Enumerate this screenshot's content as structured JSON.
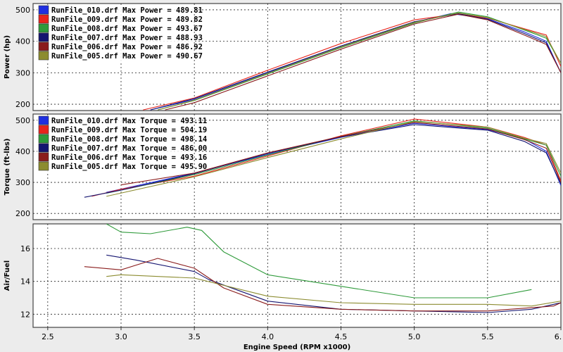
{
  "chart_data": [
    {
      "type": "line",
      "ylabel": "Power (hp)",
      "ylim": [
        180,
        520
      ],
      "yticks": [
        200,
        300,
        400,
        500
      ],
      "xlim": [
        2.4,
        6.0
      ],
      "grid": true,
      "legend_position": "top-left",
      "legend": [
        {
          "text": "RunFile_010.drf Max Power = 489.81",
          "color": "#1f2fe0"
        },
        {
          "text": "RunFile_009.drf Max Power = 489.82",
          "color": "#e8241c"
        },
        {
          "text": "RunFile_008.drf Max Power = 493.67",
          "color": "#2e9a3a"
        },
        {
          "text": "RunFile_007.drf Max Power = 488.93",
          "color": "#141470"
        },
        {
          "text": "RunFile_006.drf Max Power = 486.92",
          "color": "#8a1c1c"
        },
        {
          "text": "RunFile_005.drf Max Power = 490.67",
          "color": "#8c8c30"
        }
      ],
      "series": [
        {
          "name": "RunFile_010.drf",
          "color": "#1f2fe0",
          "x": [
            3.2,
            3.5,
            4.0,
            4.5,
            5.0,
            5.25,
            5.5,
            5.75,
            5.9,
            6.0
          ],
          "y": [
            182,
            215,
            300,
            385,
            460,
            488,
            472,
            430,
            400,
            300
          ]
        },
        {
          "name": "RunFile_009.drf",
          "color": "#e8241c",
          "x": [
            3.15,
            3.5,
            4.0,
            4.5,
            5.0,
            5.3,
            5.5,
            5.75,
            5.9,
            6.0
          ],
          "y": [
            182,
            220,
            308,
            393,
            468,
            487,
            474,
            440,
            420,
            320
          ]
        },
        {
          "name": "RunFile_008.drf",
          "color": "#2e9a3a",
          "x": [
            3.25,
            3.5,
            4.0,
            4.5,
            5.0,
            5.3,
            5.5,
            5.75,
            5.9,
            6.0
          ],
          "y": [
            182,
            212,
            296,
            380,
            458,
            493,
            478,
            436,
            410,
            330
          ]
        },
        {
          "name": "RunFile_007.drf",
          "color": "#141470",
          "x": [
            3.2,
            3.5,
            4.0,
            4.5,
            5.0,
            5.3,
            5.5,
            5.75,
            5.9,
            6.0
          ],
          "y": [
            182,
            218,
            302,
            385,
            462,
            488,
            470,
            425,
            395,
            300
          ]
        },
        {
          "name": "RunFile_006.drf",
          "color": "#8a1c1c",
          "x": [
            3.3,
            3.5,
            4.0,
            4.5,
            5.0,
            5.3,
            5.5,
            5.75,
            5.9,
            6.0
          ],
          "y": [
            182,
            205,
            290,
            375,
            455,
            486,
            468,
            420,
            390,
            300
          ]
        },
        {
          "name": "RunFile_005.drf",
          "color": "#8c8c30",
          "x": [
            3.25,
            3.5,
            4.0,
            4.5,
            5.0,
            5.3,
            5.5,
            5.75,
            5.9,
            6.0
          ],
          "y": [
            182,
            213,
            298,
            382,
            460,
            490,
            475,
            438,
            415,
            330
          ]
        }
      ]
    },
    {
      "type": "line",
      "ylabel": "Torque (ft-lbs)",
      "ylim": [
        180,
        520
      ],
      "yticks": [
        200,
        300,
        400,
        500
      ],
      "xlim": [
        2.4,
        6.0
      ],
      "grid": true,
      "legend_position": "top-left",
      "legend": [
        {
          "text": "RunFile_010.drf Max Torque = 493.11",
          "color": "#1f2fe0"
        },
        {
          "text": "RunFile_009.drf Max Torque = 504.19",
          "color": "#e8241c"
        },
        {
          "text": "RunFile_008.drf Max Torque = 498.14",
          "color": "#2e9a3a"
        },
        {
          "text": "RunFile_007.drf Max Torque = 486.00",
          "color": "#141470"
        },
        {
          "text": "RunFile_006.drf Max Torque = 493.16",
          "color": "#8a1c1c"
        },
        {
          "text": "RunFile_005.drf Max Torque = 495.90",
          "color": "#8c8c30"
        }
      ],
      "series": [
        {
          "name": "RunFile_010.drf",
          "color": "#1f2fe0",
          "x": [
            2.9,
            3.5,
            4.0,
            4.5,
            5.0,
            5.5,
            5.75,
            5.9,
            6.0
          ],
          "y": [
            268,
            330,
            390,
            445,
            490,
            470,
            440,
            400,
            290
          ]
        },
        {
          "name": "RunFile_009.drf",
          "color": "#e8241c",
          "x": [
            2.8,
            3.0,
            3.5,
            4.0,
            4.5,
            5.0,
            5.5,
            5.75,
            5.9,
            6.0
          ],
          "y": [
            255,
            278,
            320,
            385,
            450,
            504,
            478,
            445,
            420,
            305
          ]
        },
        {
          "name": "RunFile_008.drf",
          "color": "#2e9a3a",
          "x": [
            2.9,
            3.5,
            4.0,
            4.5,
            5.0,
            5.5,
            5.75,
            5.9,
            6.0
          ],
          "y": [
            265,
            325,
            388,
            448,
            498,
            475,
            440,
            420,
            320
          ]
        },
        {
          "name": "RunFile_007.drf",
          "color": "#141470",
          "x": [
            2.75,
            3.0,
            3.5,
            4.0,
            4.5,
            5.0,
            5.5,
            5.75,
            5.9,
            6.0
          ],
          "y": [
            252,
            275,
            328,
            393,
            446,
            486,
            468,
            432,
            395,
            295
          ]
        },
        {
          "name": "RunFile_006.drf",
          "color": "#8a1c1c",
          "x": [
            3.0,
            3.5,
            4.0,
            4.5,
            5.0,
            5.5,
            5.75,
            5.9,
            6.0
          ],
          "y": [
            292,
            330,
            395,
            448,
            493,
            472,
            438,
            410,
            300
          ]
        },
        {
          "name": "RunFile_005.drf",
          "color": "#8c8c30",
          "x": [
            2.9,
            3.5,
            4.0,
            4.5,
            5.0,
            5.5,
            5.75,
            5.9,
            6.0
          ],
          "y": [
            255,
            318,
            380,
            440,
            496,
            478,
            442,
            425,
            330
          ]
        }
      ]
    },
    {
      "type": "line",
      "ylabel": "Air/Fuel",
      "ylim": [
        11.2,
        17.5
      ],
      "yticks": [
        12,
        14,
        16
      ],
      "xlim": [
        2.4,
        6.0
      ],
      "xticks": [
        2.5,
        3.0,
        3.5,
        4.0,
        4.5,
        5.0,
        5.5,
        6.0
      ],
      "xticklabels": [
        "2.5",
        "3.0",
        "3.5",
        "4.0",
        "4.5",
        "5.0",
        "5.5",
        "6."
      ],
      "xlabel": "Engine Speed (RPM x1000)",
      "grid": true,
      "series": [
        {
          "name": "RunFile_008.drf",
          "color": "#2e9a3a",
          "x": [
            2.9,
            3.0,
            3.2,
            3.45,
            3.55,
            3.7,
            4.0,
            4.5,
            5.0,
            5.5,
            5.8
          ],
          "y": [
            17.5,
            17.0,
            16.9,
            17.3,
            17.1,
            15.8,
            14.4,
            13.7,
            13.0,
            13.0,
            13.5
          ]
        },
        {
          "name": "RunFile_007.drf",
          "color": "#141470",
          "x": [
            2.9,
            3.1,
            3.5,
            3.6,
            4.0,
            4.5,
            5.0,
            5.5,
            5.8,
            5.95,
            6.0
          ],
          "y": [
            15.6,
            15.3,
            14.6,
            14.1,
            12.8,
            12.3,
            12.2,
            12.1,
            12.3,
            12.6,
            12.7
          ]
        },
        {
          "name": "RunFile_006.drf",
          "color": "#8a1c1c",
          "x": [
            2.75,
            3.0,
            3.25,
            3.5,
            3.7,
            4.0,
            4.5,
            5.0,
            5.5,
            5.95,
            6.0
          ],
          "y": [
            14.9,
            14.7,
            15.4,
            14.8,
            13.6,
            12.6,
            12.3,
            12.2,
            12.2,
            12.5,
            12.7
          ]
        },
        {
          "name": "RunFile_005.drf",
          "color": "#8c8c30",
          "x": [
            2.9,
            3.0,
            3.5,
            4.0,
            4.5,
            5.0,
            5.5,
            5.8,
            6.0
          ],
          "y": [
            14.3,
            14.4,
            14.2,
            13.1,
            12.7,
            12.6,
            12.6,
            12.5,
            12.8
          ]
        }
      ]
    }
  ]
}
